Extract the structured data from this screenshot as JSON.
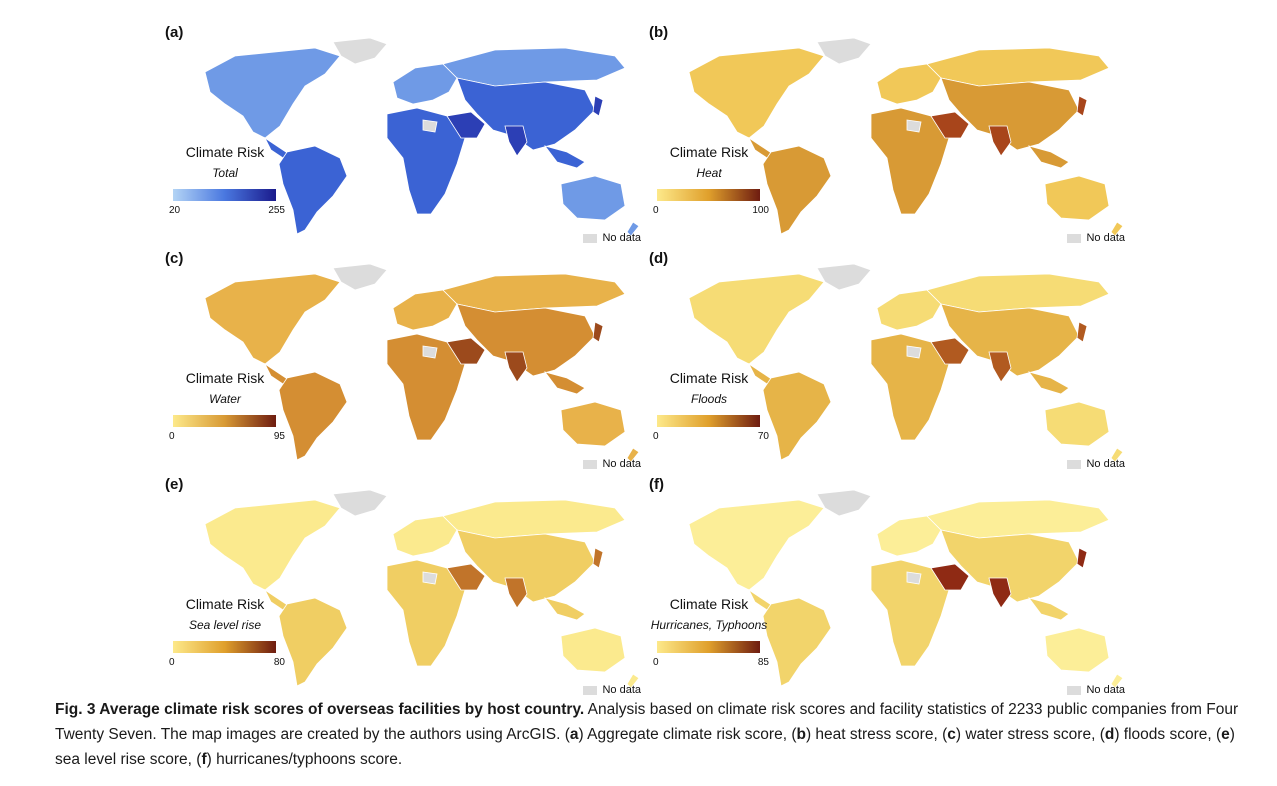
{
  "panels": [
    {
      "label": "(a)",
      "legend_title": "Climate Risk",
      "legend_sub": "Total",
      "min": "20",
      "max": "255",
      "no_data": "No data",
      "colors": {
        "low": "#b3d4f5",
        "mid": "#4a78e0",
        "high": "#1a1a8c",
        "land": "#6f9ae6",
        "land2": "#3b63d4",
        "accent": "#2c3fb5"
      }
    },
    {
      "label": "(b)",
      "legend_title": "Climate Risk",
      "legend_sub": "Heat",
      "min": "0",
      "max": "100",
      "no_data": "No data",
      "colors": {
        "low": "#fde98a",
        "mid": "#e0a02c",
        "high": "#6e1c10",
        "land": "#f1c858",
        "land2": "#d89a35",
        "accent": "#a8451b"
      }
    },
    {
      "label": "(c)",
      "legend_title": "Climate Risk",
      "legend_sub": "Water",
      "min": "0",
      "max": "95",
      "no_data": "No data",
      "colors": {
        "low": "#fde98a",
        "mid": "#d89a35",
        "high": "#6e1c10",
        "land": "#e8b24a",
        "land2": "#d48e33",
        "accent": "#9c4a1c"
      }
    },
    {
      "label": "(d)",
      "legend_title": "Climate Risk",
      "legend_sub": "Floods",
      "min": "0",
      "max": "70",
      "no_data": "No data",
      "colors": {
        "low": "#fde98a",
        "mid": "#e0a02c",
        "high": "#6e1c10",
        "land": "#f6dc75",
        "land2": "#e6b448",
        "accent": "#b15a20"
      }
    },
    {
      "label": "(e)",
      "legend_title": "Climate Risk",
      "legend_sub": "Sea level rise",
      "min": "0",
      "max": "80",
      "no_data": "No data",
      "colors": {
        "low": "#fde98a",
        "mid": "#e0a02c",
        "high": "#6e1c10",
        "land": "#fbea8e",
        "land2": "#f0ce63",
        "accent": "#c1742a"
      }
    },
    {
      "label": "(f)",
      "legend_title": "Climate Risk",
      "legend_sub": "Hurricanes, Typhoons",
      "min": "0",
      "max": "85",
      "no_data": "No data",
      "colors": {
        "low": "#fde98a",
        "mid": "#e0a02c",
        "high": "#6e1c10",
        "land": "#fcee98",
        "land2": "#f2d46b",
        "accent": "#8f2a14"
      }
    }
  ],
  "caption": {
    "bold": "Fig. 3 Average climate risk scores of overseas facilities by host country.",
    "text1": " Analysis based on climate risk scores and facility statistics of 2233 public companies from Four Twenty Seven. The map images are created by the authors using ArcGIS. (",
    "a": "a",
    "text2": ") Aggregate climate risk score, (",
    "b": "b",
    "text3": ") heat stress score, (",
    "c": "c",
    "text4": ") water stress score, (",
    "d": "d",
    "text5": ") floods score, (",
    "e": "e",
    "text6": ") sea level rise score, (",
    "f": "f",
    "text7": ") hurricanes/typhoons score."
  }
}
